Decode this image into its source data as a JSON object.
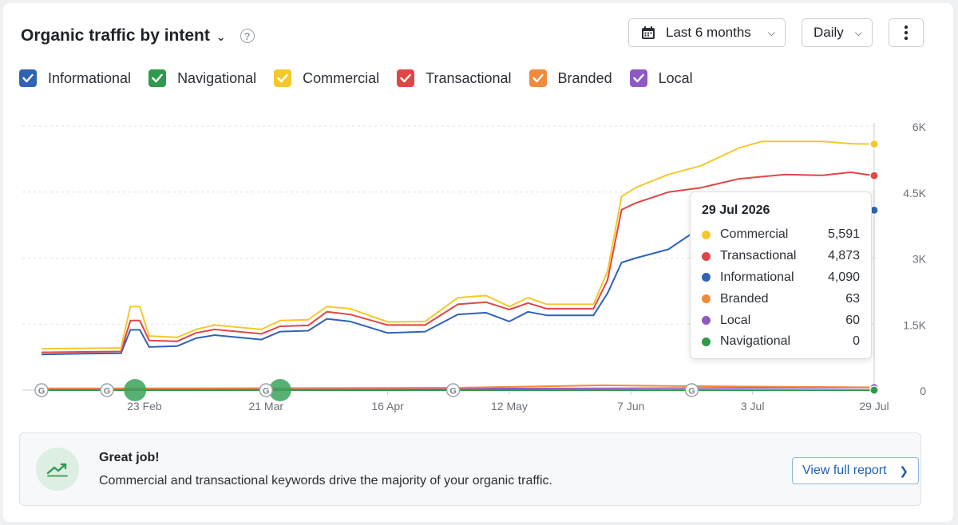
{
  "header": {
    "title": "Organic traffic by intent",
    "period_label": "Last 6 months",
    "granularity_label": "Daily"
  },
  "legend": [
    {
      "label": "Informational",
      "color": "#2f63b6"
    },
    {
      "label": "Navigational",
      "color": "#2f9a4b"
    },
    {
      "label": "Commercial",
      "color": "#f4c82d"
    },
    {
      "label": "Transactional",
      "color": "#e04646"
    },
    {
      "label": "Branded",
      "color": "#f08a3c"
    },
    {
      "label": "Local",
      "color": "#8e59c2"
    }
  ],
  "tooltip": {
    "date": "29 Jul 2026",
    "rows": [
      {
        "name": "Commercial",
        "value": "5,591",
        "color": "#f4c82d"
      },
      {
        "name": "Transactional",
        "value": "4,873",
        "color": "#e04646"
      },
      {
        "name": "Informational",
        "value": "4,090",
        "color": "#2f63b6"
      },
      {
        "name": "Branded",
        "value": "63",
        "color": "#f08a3c"
      },
      {
        "name": "Local",
        "value": "60",
        "color": "#8e59c2"
      },
      {
        "name": "Navigational",
        "value": "0",
        "color": "#2f9a4b"
      }
    ]
  },
  "banner": {
    "title": "Great job!",
    "text": "Commercial and transactional keywords drive the majority of your organic traffic.",
    "button_label": "View full report"
  },
  "chart_data": {
    "type": "line",
    "x_start": "2026-02-01",
    "x_end": "2026-07-29",
    "x_ticks": [
      {
        "date": "2026-02-23",
        "label": "23 Feb"
      },
      {
        "date": "2026-03-21",
        "label": "21 Mar"
      },
      {
        "date": "2026-04-16",
        "label": "16 Apr"
      },
      {
        "date": "2026-05-12",
        "label": "12 May"
      },
      {
        "date": "2026-06-07",
        "label": "7 Jun"
      },
      {
        "date": "2026-07-03",
        "label": "3 Jul"
      },
      {
        "date": "2026-07-29",
        "label": "29 Jul"
      }
    ],
    "y_ticks": [
      {
        "value": 0,
        "label": "0"
      },
      {
        "value": 1500,
        "label": "1.5K"
      },
      {
        "value": 3000,
        "label": "3K"
      },
      {
        "value": 4500,
        "label": "4.5K"
      },
      {
        "value": 6000,
        "label": "6K"
      }
    ],
    "ylim": [
      0,
      6000
    ],
    "grid": true,
    "google_update_markers": [
      "2026-02-01",
      "2026-02-15",
      "2026-03-21",
      "2026-04-30",
      "2026-06-20"
    ],
    "highlight_markers": [
      "2026-02-21",
      "2026-03-24"
    ],
    "series": [
      {
        "name": "Commercial",
        "color": "#f4c82d",
        "points": [
          [
            "2026-02-01",
            940
          ],
          [
            "2026-02-10",
            950
          ],
          [
            "2026-02-18",
            960
          ],
          [
            "2026-02-20",
            1900
          ],
          [
            "2026-02-22",
            1900
          ],
          [
            "2026-02-24",
            1230
          ],
          [
            "2026-03-02",
            1200
          ],
          [
            "2026-03-06",
            1380
          ],
          [
            "2026-03-10",
            1480
          ],
          [
            "2026-03-20",
            1380
          ],
          [
            "2026-03-24",
            1580
          ],
          [
            "2026-03-30",
            1600
          ],
          [
            "2026-04-03",
            1900
          ],
          [
            "2026-04-08",
            1850
          ],
          [
            "2026-04-16",
            1550
          ],
          [
            "2026-04-24",
            1560
          ],
          [
            "2026-05-01",
            2100
          ],
          [
            "2026-05-07",
            2150
          ],
          [
            "2026-05-12",
            1900
          ],
          [
            "2026-05-16",
            2100
          ],
          [
            "2026-05-20",
            1950
          ],
          [
            "2026-05-30",
            1950
          ],
          [
            "2026-06-02",
            2700
          ],
          [
            "2026-06-05",
            4400
          ],
          [
            "2026-06-08",
            4600
          ],
          [
            "2026-06-15",
            4900
          ],
          [
            "2026-06-22",
            5100
          ],
          [
            "2026-06-30",
            5500
          ],
          [
            "2026-07-05",
            5650
          ],
          [
            "2026-07-10",
            5650
          ],
          [
            "2026-07-18",
            5650
          ],
          [
            "2026-07-24",
            5600
          ],
          [
            "2026-07-29",
            5591
          ]
        ]
      },
      {
        "name": "Transactional",
        "color": "#e04646",
        "points": [
          [
            "2026-02-01",
            860
          ],
          [
            "2026-02-10",
            870
          ],
          [
            "2026-02-18",
            880
          ],
          [
            "2026-02-20",
            1580
          ],
          [
            "2026-02-22",
            1580
          ],
          [
            "2026-02-24",
            1130
          ],
          [
            "2026-03-02",
            1110
          ],
          [
            "2026-03-06",
            1300
          ],
          [
            "2026-03-10",
            1380
          ],
          [
            "2026-03-20",
            1280
          ],
          [
            "2026-03-24",
            1450
          ],
          [
            "2026-03-30",
            1470
          ],
          [
            "2026-04-03",
            1780
          ],
          [
            "2026-04-08",
            1720
          ],
          [
            "2026-04-16",
            1480
          ],
          [
            "2026-04-24",
            1480
          ],
          [
            "2026-05-01",
            1950
          ],
          [
            "2026-05-07",
            2000
          ],
          [
            "2026-05-12",
            1830
          ],
          [
            "2026-05-16",
            1980
          ],
          [
            "2026-05-20",
            1850
          ],
          [
            "2026-05-30",
            1850
          ],
          [
            "2026-06-02",
            2500
          ],
          [
            "2026-06-05",
            4100
          ],
          [
            "2026-06-08",
            4250
          ],
          [
            "2026-06-15",
            4500
          ],
          [
            "2026-06-22",
            4600
          ],
          [
            "2026-06-30",
            4800
          ],
          [
            "2026-07-05",
            4850
          ],
          [
            "2026-07-10",
            4900
          ],
          [
            "2026-07-18",
            4880
          ],
          [
            "2026-07-24",
            4950
          ],
          [
            "2026-07-29",
            4873
          ]
        ]
      },
      {
        "name": "Informational",
        "color": "#2f63b6",
        "points": [
          [
            "2026-02-01",
            810
          ],
          [
            "2026-02-10",
            830
          ],
          [
            "2026-02-18",
            840
          ],
          [
            "2026-02-20",
            1370
          ],
          [
            "2026-02-22",
            1370
          ],
          [
            "2026-02-24",
            980
          ],
          [
            "2026-03-02",
            1000
          ],
          [
            "2026-03-06",
            1180
          ],
          [
            "2026-03-10",
            1250
          ],
          [
            "2026-03-20",
            1150
          ],
          [
            "2026-03-24",
            1330
          ],
          [
            "2026-03-30",
            1350
          ],
          [
            "2026-04-03",
            1620
          ],
          [
            "2026-04-08",
            1560
          ],
          [
            "2026-04-16",
            1300
          ],
          [
            "2026-04-24",
            1330
          ],
          [
            "2026-05-01",
            1720
          ],
          [
            "2026-05-07",
            1760
          ],
          [
            "2026-05-12",
            1560
          ],
          [
            "2026-05-16",
            1780
          ],
          [
            "2026-05-20",
            1700
          ],
          [
            "2026-05-30",
            1700
          ],
          [
            "2026-06-02",
            2200
          ],
          [
            "2026-06-05",
            2900
          ],
          [
            "2026-06-08",
            3000
          ],
          [
            "2026-06-15",
            3200
          ],
          [
            "2026-06-22",
            3700
          ],
          [
            "2026-06-30",
            4000
          ],
          [
            "2026-07-05",
            4100
          ],
          [
            "2026-07-10",
            4200
          ],
          [
            "2026-07-18",
            4150
          ],
          [
            "2026-07-24",
            4150
          ],
          [
            "2026-07-29",
            4090
          ]
        ]
      },
      {
        "name": "Branded",
        "color": "#f08a3c",
        "points": [
          [
            "2026-02-01",
            40
          ],
          [
            "2026-03-20",
            45
          ],
          [
            "2026-05-01",
            55
          ],
          [
            "2026-06-01",
            110
          ],
          [
            "2026-06-20",
            90
          ],
          [
            "2026-07-20",
            70
          ],
          [
            "2026-07-29",
            63
          ]
        ]
      },
      {
        "name": "Local",
        "color": "#8e59c2",
        "points": [
          [
            "2026-02-01",
            20
          ],
          [
            "2026-04-01",
            30
          ],
          [
            "2026-06-01",
            40
          ],
          [
            "2026-07-29",
            60
          ]
        ]
      },
      {
        "name": "Navigational",
        "color": "#2f9a4b",
        "points": [
          [
            "2026-02-01",
            0
          ],
          [
            "2026-07-29",
            0
          ]
        ]
      }
    ]
  }
}
